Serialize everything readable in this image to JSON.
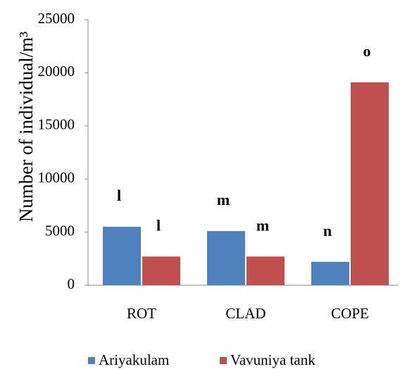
{
  "chart_data": {
    "type": "bar",
    "y_label": "Number of individual/m³",
    "categories": [
      "ROT",
      "CLAD",
      "COPE"
    ],
    "series": [
      {
        "name": "Ariyakulam",
        "color": "#4f81bd",
        "values": [
          5500,
          5100,
          2200
        ],
        "labels": [
          "l",
          "m",
          "n"
        ]
      },
      {
        "name": "Vavuniya tank",
        "color": "#c0504d",
        "values": [
          2700,
          2700,
          19100
        ],
        "labels": [
          "l",
          "m",
          "o"
        ]
      }
    ],
    "ylim": [
      0,
      25000
    ],
    "yticks": [
      0,
      5000,
      10000,
      15000,
      20000,
      25000
    ],
    "grid": false
  }
}
